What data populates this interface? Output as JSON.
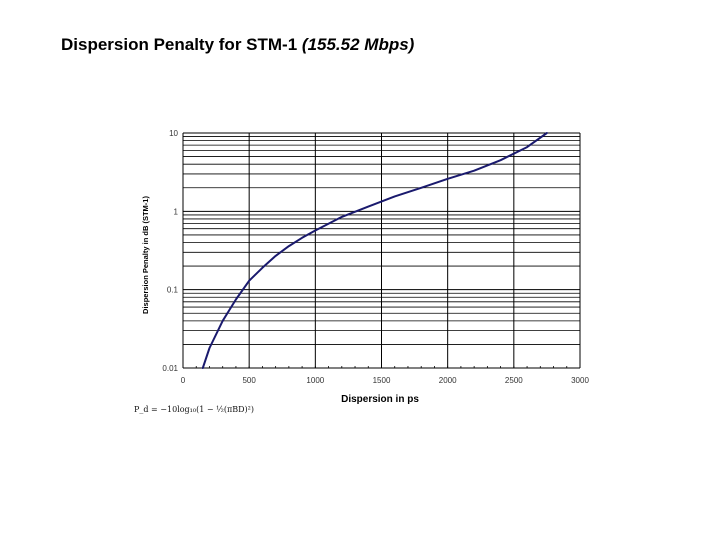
{
  "slide": {
    "title_main": "Dispersion Penalty for STM-1",
    "title_sub": "(155.52 Mbps)"
  },
  "formula": "P_d = −10log₁₀(1 − ½(πBD)²)",
  "chart_data": {
    "type": "line",
    "title": "",
    "xlabel": "Dispersion in ps",
    "ylabel": "Dispersion Penalty in dB (STM-1)",
    "x_scale": "linear",
    "y_scale": "log",
    "xlim": [
      0,
      3000
    ],
    "ylim": [
      0.01,
      10
    ],
    "x_ticks": [
      "0",
      "500",
      "1000",
      "1500",
      "2000",
      "2500",
      "3000"
    ],
    "y_ticks": [
      "0.01",
      "0.1",
      "1",
      "10"
    ],
    "grid": true,
    "line_color": "#1a1a6e",
    "series": [
      {
        "x": [
          150,
          200,
          300,
          400,
          500,
          600,
          700,
          800,
          900,
          1000,
          1200,
          1400,
          1600,
          1800,
          2000,
          2200,
          2400,
          2600,
          2750
        ],
        "values": [
          0.01,
          0.018,
          0.04,
          0.075,
          0.13,
          0.19,
          0.27,
          0.36,
          0.46,
          0.57,
          0.85,
          1.15,
          1.55,
          2.0,
          2.6,
          3.3,
          4.5,
          6.6,
          10
        ]
      }
    ]
  }
}
